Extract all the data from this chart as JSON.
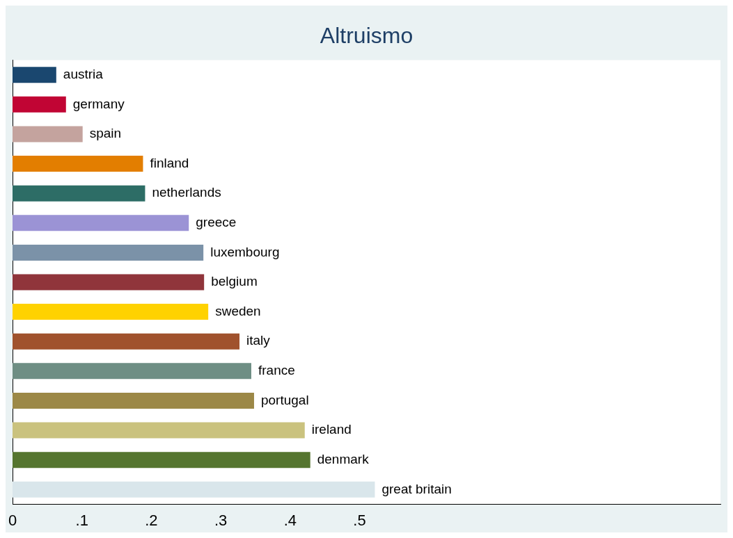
{
  "chart_data": {
    "type": "bar",
    "orientation": "horizontal",
    "title": "Altruismo",
    "categories": [
      "austria",
      "germany",
      "spain",
      "finland",
      "netherlands",
      "greece",
      "luxembourg",
      "belgium",
      "sweden",
      "italy",
      "france",
      "portugal",
      "ireland",
      "denmark",
      "great britain"
    ],
    "values": [
      0.063,
      0.077,
      0.101,
      0.188,
      0.191,
      0.254,
      0.275,
      0.276,
      0.282,
      0.327,
      0.344,
      0.348,
      0.421,
      0.429,
      0.522
    ],
    "colors": [
      "#1a476f",
      "#c10534",
      "#c4a39e",
      "#e37e00",
      "#2d6d66",
      "#9b93d5",
      "#7b92a8",
      "#90353b",
      "#ffd200",
      "#a0522d",
      "#6e8e84",
      "#9c8847",
      "#cac27e",
      "#55752f",
      "#d9e6eb"
    ],
    "xlim": [
      0,
      1.02
    ],
    "xticks": [
      0,
      {
        "value": 0.1,
        "label": ".1"
      },
      {
        "value": 0.2,
        "label": ".2"
      },
      {
        "value": 0.3,
        "label": ".3"
      },
      {
        "value": 0.4,
        "label": ".4"
      },
      {
        "value": 0.5,
        "label": ".5"
      }
    ],
    "tick_labels": "x",
    "grid": false,
    "legend": false
  }
}
